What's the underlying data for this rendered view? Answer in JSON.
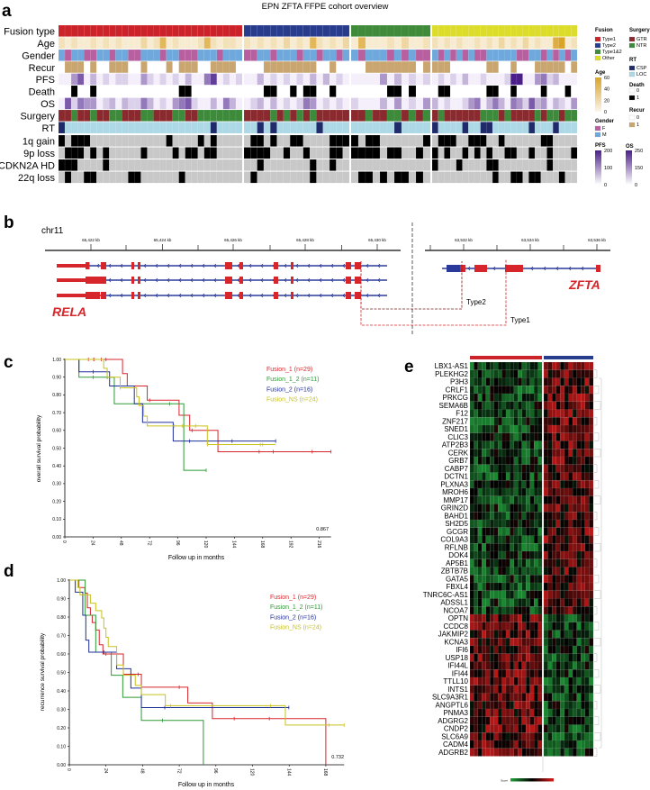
{
  "panel_labels": {
    "a": "a",
    "b": "b",
    "c": "c",
    "d": "d",
    "e": "e"
  },
  "chart_data": [
    {
      "panel": "a",
      "type": "heatmap",
      "title": "EPN ZFTA FFPE cohort overview",
      "groups": [
        {
          "name": "Type1",
          "color": "#cc2229",
          "n": 29
        },
        {
          "name": "Type2",
          "color": "#283c8e",
          "n": 16
        },
        {
          "name": "Type1&2",
          "color": "#3f8b3a",
          "n": 11
        },
        {
          "name": "Other",
          "color": "#dcdc2a",
          "n": 24
        }
      ],
      "rows": [
        {
          "label": "Fusion type",
          "kind": "group"
        },
        {
          "label": "Age",
          "kind": "scale",
          "scale": "age",
          "values": [
            "21211212121113126121112621221",
            "2121213121621213",
            "16111213112",
            "212121121213121312117812"
          ]
        },
        {
          "label": "Gender",
          "kind": "cat",
          "map": {
            "F": "#b8609f",
            "M": "#6fa8dc"
          },
          "values": [
            "MFMMFFMMFMMFFMMMFMMFFFMMMFMMM",
            "FFMMFMMMFMMFMMFM",
            "MFMMMFMFMFF",
            "MFMFMFMFFMMMMMFFMMFMFMFM"
          ]
        },
        {
          "label": "Recur",
          "kind": "cat",
          "map": {
            "0": "#ffffff",
            "1": "#c9a56f"
          },
          "values": [
            "01110100111001000101110011110",
            "0001111111100100",
            "00111111101",
            "111000000110010001111101"
          ]
        },
        {
          "label": "PFS",
          "kind": "scale",
          "scale": "purple",
          "values": [
            "11461312122114212121311571212",
            "1131212121313121",
            "11114131212",
            "121213112111288114523111"
          ]
        },
        {
          "label": "Death",
          "kind": "cat",
          "map": {
            "0": "#ffffff",
            "1": "#000000"
          },
          "values": [
            "00100100000000000001100000000",
            "0001100101100100",
            "00000110100",
            "011000000110010000100010"
          ]
        },
        {
          "label": "OS",
          "kind": "scale",
          "scale": "purple",
          "values": [
            "16254412313225312145621131531",
            "1231312125412121",
            "21113141214",
            "312112451353154263413214"
          ]
        },
        {
          "label": "Surgery",
          "kind": "cat",
          "map": {
            "G": "#8b2a2e",
            "N": "#3c8a3a"
          },
          "values": [
            "GGNGGNGGNNGGGNNGGGNNGGNNNNNNN",
            "GGGGNGNGNGNGGGGG",
            "GGNGGNNGNGN",
            "GNGGGGGGNNNGNGGGGNGNNGNN"
          ]
        },
        {
          "label": "RT",
          "kind": "cat",
          "map": {
            "C": "#1f2a6b",
            "L": "#add8e6"
          },
          "values": [
            "CLLLLLLLLLLLLLLLLLLLLLLLCLLLL",
            "LLCLCLLLLLLCLLLL",
            "LLLLLLCLLLL",
            "CLLLLCLLCCLLLLLLCLLLCLLL"
          ]
        },
        {
          "label": "1q gain",
          "kind": "cat",
          "map": {
            "0": "#c8c8c8",
            "1": "#000000"
          },
          "values": [
            "10111000000000000100001010000",
            "0110100110000111",
            "10110000001",
            "011100111001000000110000"
          ]
        },
        {
          "label": "9p loss",
          "kind": "cat",
          "map": {
            "0": "#c8c8c8",
            "1": "#000000"
          },
          "values": [
            "01110101000001000010110110000",
            "1111001001000110",
            "11110110010",
            "101001010100110010010001"
          ]
        },
        {
          "label": "CDKN2A HD",
          "kind": "cat",
          "map": {
            "0": "#c8c8c8",
            "1": "#000000"
          },
          "values": [
            "11100001000000000000000000000",
            "0010000000100100",
            "00000000000",
            "100010000110000000010000"
          ]
        },
        {
          "label": "22q loss",
          "kind": "cat",
          "map": {
            "0": "#c8c8c8",
            "1": "#000000"
          },
          "values": [
            "01001100000110000001000000000",
            "0100000000100000",
            "01101011010",
            "000000000010011011000100"
          ]
        }
      ],
      "legend": {
        "fusion": {
          "title": "Fusion",
          "items": [
            {
              "label": "Type1",
              "color": "#cc2229"
            },
            {
              "label": "Type2",
              "color": "#283c8e"
            },
            {
              "label": "Type1&2",
              "color": "#3f8b3a"
            },
            {
              "label": "Other",
              "color": "#dcdc2a"
            }
          ]
        },
        "age": {
          "title": "Age",
          "ticks": [
            "60",
            "40",
            "20",
            "0"
          ],
          "colors": [
            "#fbf5ea",
            "#d9a42a"
          ]
        },
        "gender": {
          "title": "Gender",
          "items": [
            {
              "label": "F",
              "color": "#b8609f"
            },
            {
              "label": "M",
              "color": "#6fa8dc"
            }
          ]
        },
        "pfs": {
          "title": "PFS",
          "ticks": [
            "200",
            "100",
            "0"
          ],
          "colors": [
            "#ffffff",
            "#4b1f8a"
          ]
        },
        "surgery": {
          "title": "Surgery",
          "items": [
            {
              "label": "GTR",
              "color": "#8b2a2e"
            },
            {
              "label": "NTR",
              "color": "#3c8a3a"
            }
          ]
        },
        "rt": {
          "title": "RT",
          "items": [
            {
              "label": "CSP",
              "color": "#1f2a6b"
            },
            {
              "label": "LOC",
              "color": "#add8e6"
            }
          ]
        },
        "death": {
          "title": "Death",
          "items": [
            {
              "label": "0",
              "color": "#ffffff"
            },
            {
              "label": "1",
              "color": "#000000"
            }
          ]
        },
        "recur": {
          "title": "Recur",
          "items": [
            {
              "label": "0",
              "color": "#ffffff"
            },
            {
              "label": "1",
              "color": "#c9a56f"
            }
          ]
        },
        "os": {
          "title": "OS",
          "ticks": [
            "250",
            "150",
            "0"
          ],
          "colors": [
            "#ffffff",
            "#4b1f8a"
          ]
        }
      }
    },
    {
      "panel": "c",
      "type": "line",
      "subtype": "kaplan-meier",
      "xlabel": "Follow up in months",
      "ylabel": "overall survival probability",
      "xticks": [
        0,
        24,
        48,
        72,
        96,
        120,
        144,
        168,
        192,
        216
      ],
      "yticks": [
        "0.00",
        "0.10",
        "0.20",
        "0.30",
        "0.40",
        "0.50",
        "0.60",
        "0.70",
        "0.80",
        "0.90",
        "1.00"
      ],
      "xlim": [
        0,
        226
      ],
      "ylim": [
        0,
        1
      ],
      "pvalue": "0.867",
      "legend_position": "top-right",
      "series": [
        {
          "name": "Fusion_1 (n=29)",
          "color": "#d7262b",
          "steps": [
            [
              0,
              1
            ],
            [
              49,
              0.92
            ],
            [
              53,
              0.85
            ],
            [
              70,
              0.77
            ],
            [
              97,
              0.685
            ],
            [
              106,
              0.6
            ],
            [
              130,
              0.48
            ]
          ],
          "end": 226,
          "censor": [
            20,
            25,
            31,
            35,
            72,
            108,
            165,
            177,
            210,
            226
          ]
        },
        {
          "name": "Fusion_1_2 (n=11)",
          "color": "#2d9b35",
          "steps": [
            [
              0,
              1
            ],
            [
              12,
              0.9
            ],
            [
              42,
              0.75
            ],
            [
              101,
              0.375
            ]
          ],
          "end": 120,
          "censor": [
            24,
            36,
            89,
            120
          ]
        },
        {
          "name": "Fusion_2 (n=16)",
          "color": "#1f2e9a",
          "steps": [
            [
              0,
              1
            ],
            [
              12,
              0.93
            ],
            [
              38,
              0.85
            ],
            [
              59,
              0.75
            ],
            [
              66,
              0.645
            ],
            [
              92,
              0.54
            ]
          ],
          "end": 179,
          "censor": [
            24,
            36,
            106,
            142,
            179
          ]
        },
        {
          "name": "Fusion_NS (n=24)",
          "color": "#c8c21a",
          "steps": [
            [
              0,
              1
            ],
            [
              33,
              0.95
            ],
            [
              36,
              0.9
            ],
            [
              47,
              0.84
            ],
            [
              61,
              0.79
            ],
            [
              63,
              0.74
            ],
            [
              67,
              0.68
            ],
            [
              70,
              0.625
            ],
            [
              121,
              0.52
            ]
          ],
          "end": 179,
          "censor": [
            24,
            47,
            93,
            100,
            111,
            121,
            166,
            168
          ]
        }
      ]
    },
    {
      "panel": "d",
      "type": "line",
      "subtype": "kaplan-meier",
      "xlabel": "Follow up in months",
      "ylabel": "recurrence survival probability",
      "xticks": [
        0,
        24,
        48,
        72,
        96,
        120,
        144,
        168
      ],
      "yticks": [
        "0.00",
        "0.10",
        "0.20",
        "0.30",
        "0.40",
        "0.50",
        "0.60",
        "0.70",
        "0.80",
        "0.90",
        "1.00"
      ],
      "xlim": [
        0,
        180
      ],
      "ylim": [
        0,
        1
      ],
      "pvalue": "0.732",
      "legend_position": "top-right",
      "series": [
        {
          "name": "Fusion_1 (n=29)",
          "color": "#d7262b",
          "steps": [
            [
              0,
              1
            ],
            [
              6.3,
              0.96
            ],
            [
              10.2,
              0.93
            ],
            [
              11.8,
              0.85
            ],
            [
              13.8,
              0.81
            ],
            [
              15,
              0.77
            ],
            [
              17.3,
              0.73
            ],
            [
              19.6,
              0.65
            ],
            [
              22,
              0.6
            ],
            [
              35.4,
              0.49
            ],
            [
              47.2,
              0.42
            ],
            [
              77.6,
              0.335
            ],
            [
              93.7,
              0.25
            ],
            [
              168,
              0
            ]
          ],
          "end": 168,
          "censor": [
            24,
            45,
            72,
            108,
            131
          ]
        },
        {
          "name": "Fusion_1_2 (n=11)",
          "color": "#2d9b35",
          "steps": [
            [
              0,
              1
            ],
            [
              10.4,
              0.81
            ],
            [
              17.3,
              0.61
            ],
            [
              27.5,
              0.485
            ],
            [
              35,
              0.365
            ],
            [
              47.2,
              0.24
            ],
            [
              87.8,
              0
            ]
          ],
          "end": 87.8,
          "censor": [
            61
          ]
        },
        {
          "name": "Fusion_2 (n=16)",
          "color": "#1f2e9a",
          "steps": [
            [
              0,
              1
            ],
            [
              3.9,
              0.935
            ],
            [
              8.8,
              0.81
            ],
            [
              10.8,
              0.675
            ],
            [
              12.8,
              0.61
            ],
            [
              31,
              0.52
            ],
            [
              40.3,
              0.415
            ],
            [
              47.2,
              0.31
            ]
          ],
          "end": 143.8,
          "censor": [
            22.6,
            35.4,
            62.5,
            143.8
          ]
        },
        {
          "name": "Fusion_NS (n=24)",
          "color": "#c8c21a",
          "steps": [
            [
              0,
              1
            ],
            [
              5.5,
              0.96
            ],
            [
              7,
              0.92
            ],
            [
              13.8,
              0.875
            ],
            [
              17.3,
              0.835
            ],
            [
              21.2,
              0.795
            ],
            [
              22.6,
              0.74
            ],
            [
              24,
              0.69
            ],
            [
              25.5,
              0.64
            ],
            [
              31,
              0.54
            ],
            [
              35.4,
              0.485
            ],
            [
              43.2,
              0.43
            ],
            [
              47.2,
              0.38
            ],
            [
              62.9,
              0.32
            ],
            [
              141.5,
              0.215
            ]
          ],
          "end": 180,
          "censor": [
            66.4,
            131.7,
            170,
            180
          ]
        }
      ]
    },
    {
      "panel": "e",
      "type": "heatmap",
      "group_colors": [
        "#cc2229",
        "#283c8e"
      ],
      "genes": [
        "LBX1-AS1",
        "PLEKHG2",
        "P3H3",
        "CRLF1",
        "PRKCG",
        "SEMA6B",
        "F12",
        "ZNF217",
        "SNED1",
        "CLIC3",
        "ATP2B3",
        "CERK",
        "GRB7",
        "CABP7",
        "DCTN1",
        "PLXNA3",
        "MROH6",
        "MMP17",
        "GRIN2D",
        "BAHD1",
        "SH2D5",
        "GCGR",
        "COL9A3",
        "RFLNB",
        "DOK4",
        "AP5B1",
        "ZBTB7B",
        "GATA5",
        "FBXL4",
        "TNRC6C-AS1",
        "ADSSL1",
        "NCOA7",
        "OPTN",
        "CCDC8",
        "JAKMIP2",
        "KCNA3",
        "IFI6",
        "USP18",
        "IFI44L",
        "IFI44",
        "TTLL10",
        "INTS1",
        "SLC9A3R1",
        "ANGPTL6",
        "PNMA3",
        "ADGRG2",
        "CNDP2",
        "SLC6A9",
        "CADM4",
        "ADGRB2"
      ],
      "higher_in_group": "22222222222222222222222222222222111111111111111111",
      "color_key": {
        "label": "Score",
        "colors": [
          "#1fa33a",
          "#000000",
          "#e01b1b"
        ]
      }
    }
  ],
  "gene_diagram": {
    "chromosome": "chr11",
    "left_ticks": [
      "65,422 kb",
      "65,424 kb",
      "65,426 kb",
      "65,428 kb",
      "65,430 kb"
    ],
    "right_ticks": [
      "63,532 kb",
      "63,534 kb",
      "63,536 kb"
    ],
    "gene_left": "RELA",
    "gene_right": "ZFTA",
    "fusion_labels": [
      "Type2",
      "Type1"
    ],
    "colors": {
      "exon": "#d7262b",
      "intron": "#2a3a9a",
      "type2_line": "#7a1f1f",
      "type1_line": "#d7262b"
    }
  }
}
